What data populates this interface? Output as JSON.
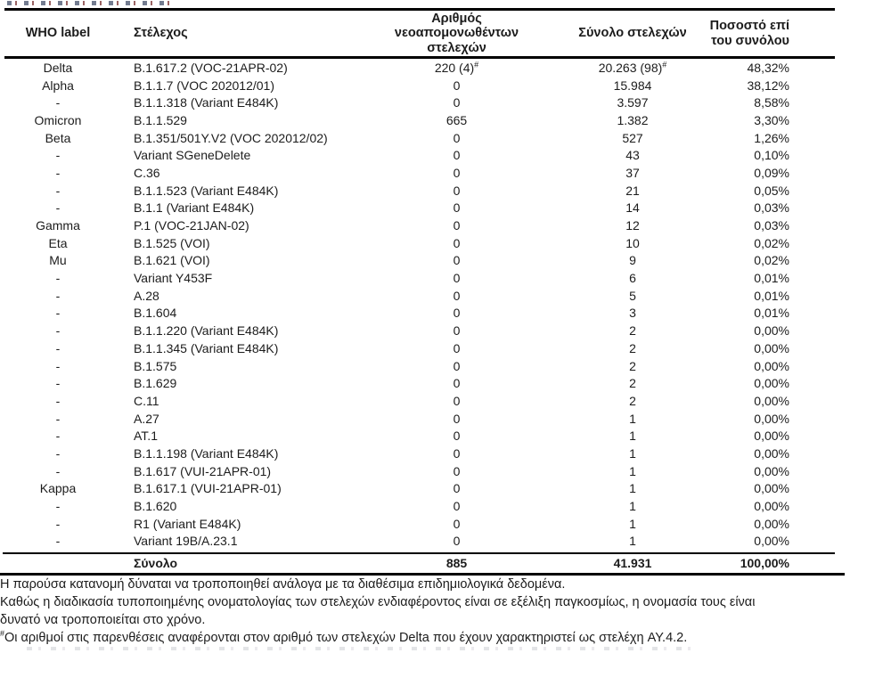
{
  "table": {
    "headers": {
      "who": "WHO label",
      "strain": "Στέλεχος",
      "newly": "Αριθμός\nνεοαπομονωθέντων\nστελεχών",
      "total": "Σύνολο στελεχών",
      "pct": "Ποσοστό επί\nτου συνόλου"
    },
    "rows": [
      {
        "who": "Delta",
        "strain": "B.1.617.2 (VOC-21APR-02)",
        "newly": "220 (4)",
        "newly_sup": "#",
        "total": "20.263 (98)",
        "total_sup": "#",
        "pct": "48,32%"
      },
      {
        "who": "Alpha",
        "strain": "B.1.1.7 (VOC 202012/01)",
        "newly": "0",
        "total": "15.984",
        "pct": "38,12%"
      },
      {
        "who": "-",
        "strain": "B.1.1.318 (Variant E484K)",
        "newly": "0",
        "total": "3.597",
        "pct": "8,58%"
      },
      {
        "who": "Omicron",
        "strain": "B.1.1.529",
        "newly": "665",
        "total": "1.382",
        "pct": "3,30%"
      },
      {
        "who": "Beta",
        "strain": "B.1.351/501Y.V2 (VOC 202012/02)",
        "newly": "0",
        "total": "527",
        "pct": "1,26%"
      },
      {
        "who": "-",
        "strain": "Variant SGeneDelete",
        "newly": "0",
        "total": "43",
        "pct": "0,10%"
      },
      {
        "who": "-",
        "strain": "C.36",
        "newly": "0",
        "total": "37",
        "pct": "0,09%"
      },
      {
        "who": "-",
        "strain": "B.1.1.523 (Variant E484K)",
        "newly": "0",
        "total": "21",
        "pct": "0,05%"
      },
      {
        "who": "-",
        "strain": "B.1.1 (Variant E484K)",
        "newly": "0",
        "total": "14",
        "pct": "0,03%"
      },
      {
        "who": "Gamma",
        "strain": "P.1 (VOC-21JAN-02)",
        "newly": "0",
        "total": "12",
        "pct": "0,03%"
      },
      {
        "who": "Eta",
        "strain": "B.1.525 (VOI)",
        "newly": "0",
        "total": "10",
        "pct": "0,02%"
      },
      {
        "who": "Mu",
        "strain": "B.1.621 (VOI)",
        "newly": "0",
        "total": "9",
        "pct": "0,02%"
      },
      {
        "who": "-",
        "strain": "Variant Y453F",
        "newly": "0",
        "total": "6",
        "pct": "0,01%"
      },
      {
        "who": "-",
        "strain": "A.28",
        "newly": "0",
        "total": "5",
        "pct": "0,01%"
      },
      {
        "who": "-",
        "strain": "B.1.604",
        "newly": "0",
        "total": "3",
        "pct": "0,01%"
      },
      {
        "who": "-",
        "strain": "B.1.1.220 (Variant E484K)",
        "newly": "0",
        "total": "2",
        "pct": "0,00%"
      },
      {
        "who": "-",
        "strain": "B.1.1.345 (Variant E484K)",
        "newly": "0",
        "total": "2",
        "pct": "0,00%"
      },
      {
        "who": "-",
        "strain": "B.1.575",
        "newly": "0",
        "total": "2",
        "pct": "0,00%"
      },
      {
        "who": "-",
        "strain": "B.1.629",
        "newly": "0",
        "total": "2",
        "pct": "0,00%"
      },
      {
        "who": "-",
        "strain": "C.11",
        "newly": "0",
        "total": "2",
        "pct": "0,00%"
      },
      {
        "who": "-",
        "strain": "A.27",
        "newly": "0",
        "total": "1",
        "pct": "0,00%"
      },
      {
        "who": "-",
        "strain": "AT.1",
        "newly": "0",
        "total": "1",
        "pct": "0,00%"
      },
      {
        "who": "-",
        "strain": "B.1.1.198 (Variant E484K)",
        "newly": "0",
        "total": "1",
        "pct": "0,00%"
      },
      {
        "who": "-",
        "strain": "B.1.617 (VUI-21APR-01)",
        "newly": "0",
        "total": "1",
        "pct": "0,00%"
      },
      {
        "who": "Kappa",
        "strain": "B.1.617.1 (VUI-21APR-01)",
        "newly": "0",
        "total": "1",
        "pct": "0,00%"
      },
      {
        "who": "-",
        "strain": "B.1.620",
        "newly": "0",
        "total": "1",
        "pct": "0,00%"
      },
      {
        "who": "-",
        "strain": "R1 (Variant E484K)",
        "newly": "0",
        "total": "1",
        "pct": "0,00%"
      },
      {
        "who": "-",
        "strain": "Variant 19B/A.23.1",
        "newly": "0",
        "total": "1",
        "pct": "0,00%"
      }
    ],
    "total_row": {
      "label": "Σύνολο",
      "newly": "885",
      "total": "41.931",
      "pct": "100,00%"
    }
  },
  "footnotes": [
    {
      "sup": "",
      "text": "Η παρούσα κατανομή δύναται να τροποποιηθεί ανάλογα με τα διαθέσιμα επιδημιολογικά δεδομένα."
    },
    {
      "sup": "",
      "text": "Καθώς η διαδικασία τυποποιημένης ονοματολογίας των στελεχών ενδιαφέροντος είναι σε εξέλιξη παγκοσμίως, η ονομασία τους είναι\nδυνατό να τροποποιείται στο χρόνο."
    },
    {
      "sup": "#",
      "text": "Οι αριθμοί στις παρενθέσεις αναφέρονται στον αριθμό των στελεχών Delta που έχουν χαρακτηριστεί ως στελέχη AY.4.2."
    }
  ]
}
